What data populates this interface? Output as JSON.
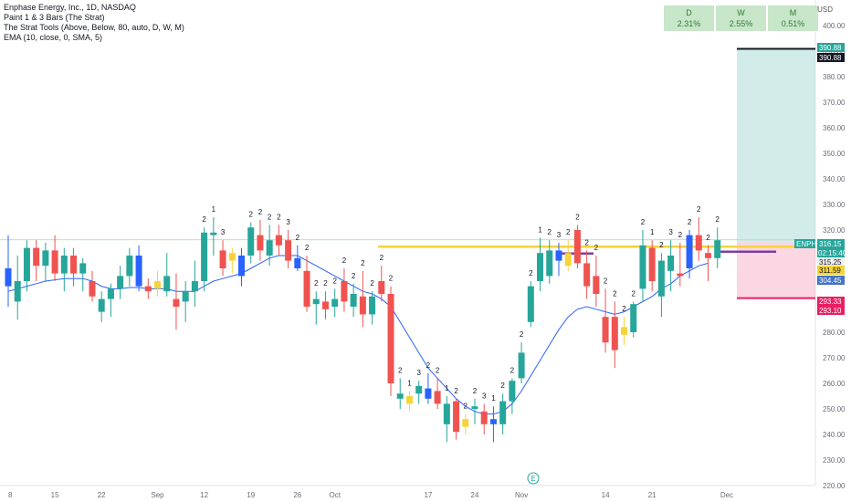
{
  "legend": {
    "title": "Enphase Energy, Inc., 1D, NASDAQ",
    "line1": "Paint 1 & 3 Bars (The Strat)",
    "line2": "The Strat Tools (Above, Below, 80, auto, D, W, M)",
    "line3": "EMA (10, close, 0, SMA, 5)"
  },
  "mtf_table": [
    {
      "label": "D",
      "value": "2.31%"
    },
    {
      "label": "W",
      "value": "2.55%"
    },
    {
      "label": "M",
      "value": "0.51%"
    }
  ],
  "currency": "USD",
  "chart_data": {
    "type": "candlestick",
    "title": "Enphase Energy, Inc., 1D, NASDAQ",
    "ylim": [
      220,
      410
    ],
    "y_ticks": [
      220,
      230,
      240,
      250,
      260,
      270,
      280,
      290,
      300,
      310,
      320,
      330,
      340,
      350,
      360,
      370,
      380,
      390,
      400
    ],
    "y_tick_labels": [
      "220.00",
      "230.00",
      "240.00",
      "250.00",
      "260.00",
      "270.00",
      "280.00",
      "290.00",
      "300.00",
      "310.00",
      "320.00",
      "330.00",
      "340.00",
      "350.00",
      "360.00",
      "370.00",
      "380.00",
      "390.00",
      "400.00"
    ],
    "x_tick_labels": [
      {
        "label": "8",
        "index": 0
      },
      {
        "label": "15",
        "index": 5
      },
      {
        "label": "22",
        "index": 10
      },
      {
        "label": "Sep",
        "index": 16
      },
      {
        "label": "12",
        "index": 21
      },
      {
        "label": "19",
        "index": 26
      },
      {
        "label": "26",
        "index": 31
      },
      {
        "label": "Oct",
        "index": 35
      },
      {
        "label": "17",
        "index": 45
      },
      {
        "label": "24",
        "index": 50
      },
      {
        "label": "Nov",
        "index": 55
      },
      {
        "label": "14",
        "index": 64
      },
      {
        "label": "21",
        "index": 69
      },
      {
        "label": "Dec",
        "index": 77
      }
    ],
    "candles": [
      {
        "o": 305,
        "h": 318,
        "l": 290,
        "c": 298,
        "color": "blue"
      },
      {
        "o": 292,
        "h": 310,
        "l": 285,
        "c": 300,
        "color": "green"
      },
      {
        "o": 300,
        "h": 316,
        "l": 296,
        "c": 313,
        "color": "green"
      },
      {
        "o": 313,
        "h": 316,
        "l": 300,
        "c": 306,
        "color": "red"
      },
      {
        "o": 306,
        "h": 315,
        "l": 300,
        "c": 312,
        "color": "green"
      },
      {
        "o": 312,
        "h": 318,
        "l": 300,
        "c": 303,
        "color": "red"
      },
      {
        "o": 303,
        "h": 313,
        "l": 296,
        "c": 310,
        "color": "green"
      },
      {
        "o": 310,
        "h": 313,
        "l": 298,
        "c": 303,
        "color": "red"
      },
      {
        "o": 303,
        "h": 309,
        "l": 296,
        "c": 307,
        "color": "green"
      },
      {
        "o": 300,
        "h": 304,
        "l": 292,
        "c": 294,
        "color": "red"
      },
      {
        "o": 293,
        "h": 296,
        "l": 284,
        "c": 288,
        "color": "green"
      },
      {
        "o": 293,
        "h": 299,
        "l": 286,
        "c": 297,
        "color": "green"
      },
      {
        "o": 297,
        "h": 306,
        "l": 293,
        "c": 302,
        "color": "green"
      },
      {
        "o": 302,
        "h": 313,
        "l": 298,
        "c": 310,
        "color": "green"
      },
      {
        "o": 310,
        "h": 314,
        "l": 296,
        "c": 298,
        "color": "blue"
      },
      {
        "o": 298,
        "h": 301,
        "l": 293,
        "c": 296,
        "color": "red"
      },
      {
        "o": 300,
        "h": 304,
        "l": 294,
        "c": 297,
        "color": "yellow"
      },
      {
        "o": 296,
        "h": 311,
        "l": 294,
        "c": 302,
        "color": "green"
      },
      {
        "o": 293,
        "h": 303,
        "l": 281,
        "c": 290,
        "color": "red"
      },
      {
        "o": 292,
        "h": 300,
        "l": 284,
        "c": 296,
        "color": "green"
      },
      {
        "o": 296,
        "h": 308,
        "l": 290,
        "c": 300,
        "color": "green"
      },
      {
        "o": 300,
        "h": 321,
        "l": 296,
        "c": 319,
        "color": "green"
      },
      {
        "o": 319,
        "h": 325,
        "l": 310,
        "c": 318,
        "color": "green"
      },
      {
        "o": 312,
        "h": 316,
        "l": 302,
        "c": 305,
        "color": "red"
      },
      {
        "o": 308,
        "h": 313,
        "l": 303,
        "c": 311,
        "color": "yellow"
      },
      {
        "o": 310,
        "h": 313,
        "l": 298,
        "c": 302,
        "color": "blue"
      },
      {
        "o": 310,
        "h": 323,
        "l": 307,
        "c": 321,
        "color": "green"
      },
      {
        "o": 318,
        "h": 324,
        "l": 308,
        "c": 312,
        "color": "red"
      },
      {
        "o": 310,
        "h": 322,
        "l": 306,
        "c": 316,
        "color": "green"
      },
      {
        "o": 318,
        "h": 322,
        "l": 310,
        "c": 314,
        "color": "red"
      },
      {
        "o": 316,
        "h": 320,
        "l": 305,
        "c": 308,
        "color": "red"
      },
      {
        "o": 309,
        "h": 314,
        "l": 304,
        "c": 305,
        "color": "blue"
      },
      {
        "o": 304,
        "h": 310,
        "l": 288,
        "c": 290,
        "color": "red"
      },
      {
        "o": 291,
        "h": 296,
        "l": 283,
        "c": 293,
        "color": "green"
      },
      {
        "o": 292,
        "h": 296,
        "l": 285,
        "c": 289,
        "color": "red"
      },
      {
        "o": 290,
        "h": 297,
        "l": 286,
        "c": 293,
        "color": "green"
      },
      {
        "o": 300,
        "h": 305,
        "l": 288,
        "c": 292,
        "color": "red"
      },
      {
        "o": 290,
        "h": 299,
        "l": 286,
        "c": 295,
        "color": "green"
      },
      {
        "o": 294,
        "h": 304,
        "l": 282,
        "c": 287,
        "color": "red"
      },
      {
        "o": 287,
        "h": 296,
        "l": 283,
        "c": 294,
        "color": "green"
      },
      {
        "o": 300,
        "h": 306,
        "l": 292,
        "c": 295,
        "color": "red"
      },
      {
        "o": 295,
        "h": 298,
        "l": 255,
        "c": 260,
        "color": "red"
      },
      {
        "o": 256,
        "h": 262,
        "l": 250,
        "c": 254,
        "color": "green"
      },
      {
        "o": 252,
        "h": 257,
        "l": 249,
        "c": 255,
        "color": "yellow"
      },
      {
        "o": 256,
        "h": 261,
        "l": 252,
        "c": 259,
        "color": "green"
      },
      {
        "o": 258,
        "h": 264,
        "l": 252,
        "c": 254,
        "color": "blue"
      },
      {
        "o": 257,
        "h": 262,
        "l": 250,
        "c": 252,
        "color": "red"
      },
      {
        "o": 252,
        "h": 255,
        "l": 237,
        "c": 244,
        "color": "green"
      },
      {
        "o": 253,
        "h": 254,
        "l": 238,
        "c": 241,
        "color": "red"
      },
      {
        "o": 243,
        "h": 248,
        "l": 240,
        "c": 246,
        "color": "yellow"
      },
      {
        "o": 250,
        "h": 254,
        "l": 244,
        "c": 251,
        "color": "green"
      },
      {
        "o": 249,
        "h": 252,
        "l": 240,
        "c": 244,
        "color": "red"
      },
      {
        "o": 246,
        "h": 251,
        "l": 237,
        "c": 244,
        "color": "blue"
      },
      {
        "o": 244,
        "h": 256,
        "l": 240,
        "c": 253,
        "color": "green"
      },
      {
        "o": 253,
        "h": 262,
        "l": 248,
        "c": 261,
        "color": "green"
      },
      {
        "o": 262,
        "h": 276,
        "l": 260,
        "c": 272,
        "color": "green"
      },
      {
        "o": 284,
        "h": 300,
        "l": 282,
        "c": 298,
        "color": "green"
      },
      {
        "o": 300,
        "h": 317,
        "l": 296,
        "c": 311,
        "color": "green"
      },
      {
        "o": 302,
        "h": 316,
        "l": 299,
        "c": 312,
        "color": "green"
      },
      {
        "o": 308,
        "h": 315,
        "l": 302,
        "c": 312,
        "color": "blue"
      },
      {
        "o": 306,
        "h": 316,
        "l": 304,
        "c": 311,
        "color": "yellow"
      },
      {
        "o": 320,
        "h": 322,
        "l": 305,
        "c": 307,
        "color": "red"
      },
      {
        "o": 307,
        "h": 312,
        "l": 293,
        "c": 298,
        "color": "red"
      },
      {
        "o": 302,
        "h": 310,
        "l": 290,
        "c": 295,
        "color": "red"
      },
      {
        "o": 286,
        "h": 297,
        "l": 272,
        "c": 276,
        "color": "red"
      },
      {
        "o": 286,
        "h": 292,
        "l": 266,
        "c": 273,
        "color": "red"
      },
      {
        "o": 282,
        "h": 286,
        "l": 275,
        "c": 279,
        "color": "yellow"
      },
      {
        "o": 280,
        "h": 292,
        "l": 278,
        "c": 291,
        "color": "green"
      },
      {
        "o": 297,
        "h": 320,
        "l": 292,
        "c": 314,
        "color": "green"
      },
      {
        "o": 313,
        "h": 316,
        "l": 296,
        "c": 300,
        "color": "red"
      },
      {
        "o": 294,
        "h": 311,
        "l": 286,
        "c": 308,
        "color": "green"
      },
      {
        "o": 304,
        "h": 316,
        "l": 296,
        "c": 310,
        "color": "green"
      },
      {
        "o": 302,
        "h": 315,
        "l": 298,
        "c": 303,
        "color": "red"
      },
      {
        "o": 305,
        "h": 320,
        "l": 301,
        "c": 318,
        "color": "blue"
      },
      {
        "o": 318,
        "h": 325,
        "l": 308,
        "c": 312,
        "color": "red"
      },
      {
        "o": 311,
        "h": 314,
        "l": 300,
        "c": 309,
        "color": "red"
      },
      {
        "o": 309,
        "h": 321,
        "l": 305,
        "c": 316,
        "color": "green"
      }
    ],
    "ema": [
      296,
      297,
      298,
      299,
      300,
      300.5,
      301,
      301,
      301,
      300,
      298,
      297,
      297,
      297.5,
      297.5,
      297,
      297,
      297,
      296,
      296,
      296,
      298,
      300,
      301,
      302,
      303,
      305,
      307,
      309,
      310,
      310,
      310,
      308,
      306,
      304,
      302,
      300,
      298,
      296,
      295,
      293,
      290,
      284,
      278,
      272,
      266,
      262,
      258,
      254,
      251,
      249,
      248,
      248,
      249,
      252,
      257,
      263,
      269,
      275,
      281,
      286,
      289,
      290,
      289,
      288,
      287,
      288,
      290,
      292,
      294,
      297,
      299,
      302,
      304,
      306,
      307
    ],
    "strat_labels": [
      {
        "i": 21,
        "t": "2"
      },
      {
        "i": 22,
        "t": "1"
      },
      {
        "i": 23,
        "t": "3"
      },
      {
        "i": 26,
        "t": "2"
      },
      {
        "i": 27,
        "t": "2"
      },
      {
        "i": 28,
        "t": "2"
      },
      {
        "i": 29,
        "t": "2"
      },
      {
        "i": 30,
        "t": "3"
      },
      {
        "i": 31,
        "t": "2"
      },
      {
        "i": 32,
        "t": "2"
      },
      {
        "i": 33,
        "t": "2"
      },
      {
        "i": 34,
        "t": "2"
      },
      {
        "i": 35,
        "t": "2"
      },
      {
        "i": 36,
        "t": "2"
      },
      {
        "i": 37,
        "t": "2"
      },
      {
        "i": 38,
        "t": "2"
      },
      {
        "i": 39,
        "t": "2"
      },
      {
        "i": 40,
        "t": "2"
      },
      {
        "i": 41,
        "t": "2"
      },
      {
        "i": 42,
        "t": "2"
      },
      {
        "i": 43,
        "t": "1"
      },
      {
        "i": 44,
        "t": "3"
      },
      {
        "i": 45,
        "t": "2"
      },
      {
        "i": 46,
        "t": "2"
      },
      {
        "i": 47,
        "t": "1"
      },
      {
        "i": 48,
        "t": "2"
      },
      {
        "i": 49,
        "t": "2"
      },
      {
        "i": 50,
        "t": "2"
      },
      {
        "i": 51,
        "t": "3"
      },
      {
        "i": 52,
        "t": "1"
      },
      {
        "i": 53,
        "t": "2"
      },
      {
        "i": 54,
        "t": "2"
      },
      {
        "i": 55,
        "t": "2"
      },
      {
        "i": 56,
        "t": "2"
      },
      {
        "i": 57,
        "t": "1"
      },
      {
        "i": 58,
        "t": "2"
      },
      {
        "i": 59,
        "t": "3"
      },
      {
        "i": 60,
        "t": "2"
      },
      {
        "i": 61,
        "t": "2"
      },
      {
        "i": 62,
        "t": "2"
      },
      {
        "i": 63,
        "t": "2"
      },
      {
        "i": 64,
        "t": "2"
      },
      {
        "i": 65,
        "t": "2"
      },
      {
        "i": 66,
        "t": "2"
      },
      {
        "i": 67,
        "t": "2"
      },
      {
        "i": 68,
        "t": "2"
      },
      {
        "i": 69,
        "t": "1"
      },
      {
        "i": 70,
        "t": "2"
      },
      {
        "i": 71,
        "t": "3"
      },
      {
        "i": 72,
        "t": "2"
      },
      {
        "i": 73,
        "t": "2"
      },
      {
        "i": 74,
        "t": "2"
      },
      {
        "i": 75,
        "t": "2"
      },
      {
        "i": 76,
        "t": "2"
      }
    ],
    "horizontal_levels": [
      {
        "value": 313.5,
        "color": "#f5d33a",
        "label": "yellow-level"
      },
      {
        "value": 311.5,
        "color": "#7b3fa0",
        "label": "purple-level"
      }
    ],
    "position": {
      "entry": 315.25,
      "target": 390.88,
      "stop": 293.33
    },
    "price_tags": [
      {
        "value": 390.88,
        "text": "390.88",
        "bg": "#26a69a",
        "fg": "#ffffff"
      },
      {
        "value": 390.88,
        "text": "390.88",
        "bg": "#131722",
        "fg": "#ffffff"
      },
      {
        "value": 316.15,
        "text": "316.15",
        "bg": "#26a69a",
        "fg": "#ffffff"
      },
      {
        "value": 315.25,
        "text": "315.25",
        "bg": "#f0f0f0",
        "fg": "#131722"
      },
      {
        "value": 311.59,
        "text": "311.59",
        "bg": "#f5d33a",
        "fg": "#131722"
      },
      {
        "value": 304.45,
        "text": "304.45",
        "bg": "#4472c4",
        "fg": "#ffffff"
      },
      {
        "value": 293.33,
        "text": "293.33",
        "bg": "#e91e63",
        "fg": "#ffffff"
      },
      {
        "value": 293.1,
        "text": "293.10",
        "bg": "#e91e63",
        "fg": "#ffffff"
      }
    ],
    "symbol_tag": "ENPH",
    "countdown": "02:15:40"
  }
}
